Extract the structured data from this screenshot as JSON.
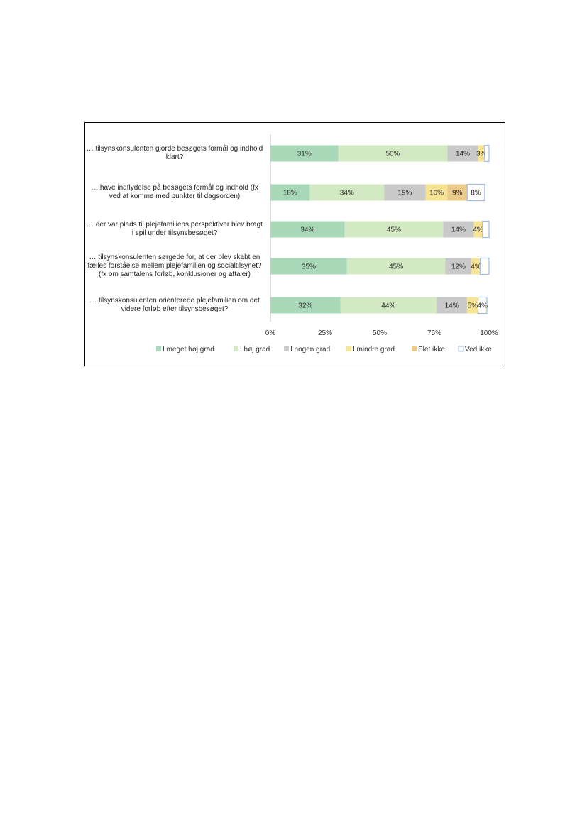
{
  "chart_data": {
    "type": "bar",
    "orientation": "horizontal",
    "stacked": true,
    "percent_stacked": true,
    "categories": [
      "… tilsynskonsulenten  gjorde besøgets  formål og indhold klart?",
      "… have indflydelse på besøgets formål og indhold (fx ved at komme med punkter til dagsorden)",
      "… der var plads til plejefamiliens perspektiver blev bragt i spil under tilsynsbesøget?",
      "… tilsynskonsulenten  sørgede for, at der blev skabt en fælles forståelse mellem plejefamilien og socialtilsynet? (fx om samtalens  forløb, konklusioner og aftaler)",
      "… tilsynskonsulenten  orienterede plejefamilien om det videre forløb efter tilsynsbesøget?"
    ],
    "series": [
      {
        "name": "I meget høj grad",
        "color": "#a9d8b8",
        "values": [
          31,
          18,
          34,
          35,
          32
        ],
        "labels": [
          "31%",
          "18%",
          "34%",
          "35%",
          "32%"
        ]
      },
      {
        "name": "I høj grad",
        "color": "#d3e9c3",
        "values": [
          50,
          34,
          45,
          45,
          44
        ],
        "labels": [
          "50%",
          "34%",
          "45%",
          "45%",
          "44%"
        ]
      },
      {
        "name": "I nogen grad",
        "color": "#c9c9c9",
        "values": [
          14,
          19,
          14,
          12,
          14
        ],
        "labels": [
          "14%",
          "19%",
          "14%",
          "12%",
          "14%"
        ]
      },
      {
        "name": "I mindre grad",
        "color": "#f6e393",
        "values": [
          3,
          10,
          4,
          4,
          5
        ],
        "labels": [
          "3%",
          "10%",
          "4%",
          "4%",
          "5%"
        ]
      },
      {
        "name": "Slet ikke",
        "color": "#ebcb8b",
        "values": [
          0,
          9,
          0,
          0,
          0
        ],
        "labels": [
          "",
          "9%",
          "",
          "",
          ""
        ]
      },
      {
        "name": "Ved ikke",
        "color": "#ffffff",
        "edge": "#9fbbe0",
        "values": [
          2,
          8,
          3,
          4,
          4
        ],
        "labels": [
          "",
          "8%",
          "",
          "",
          "4%"
        ]
      }
    ],
    "xlim": [
      0,
      100
    ],
    "xticks": [
      "0%",
      "25%",
      "50%",
      "75%",
      "100%"
    ],
    "grid": false,
    "legend_position": "bottom"
  }
}
